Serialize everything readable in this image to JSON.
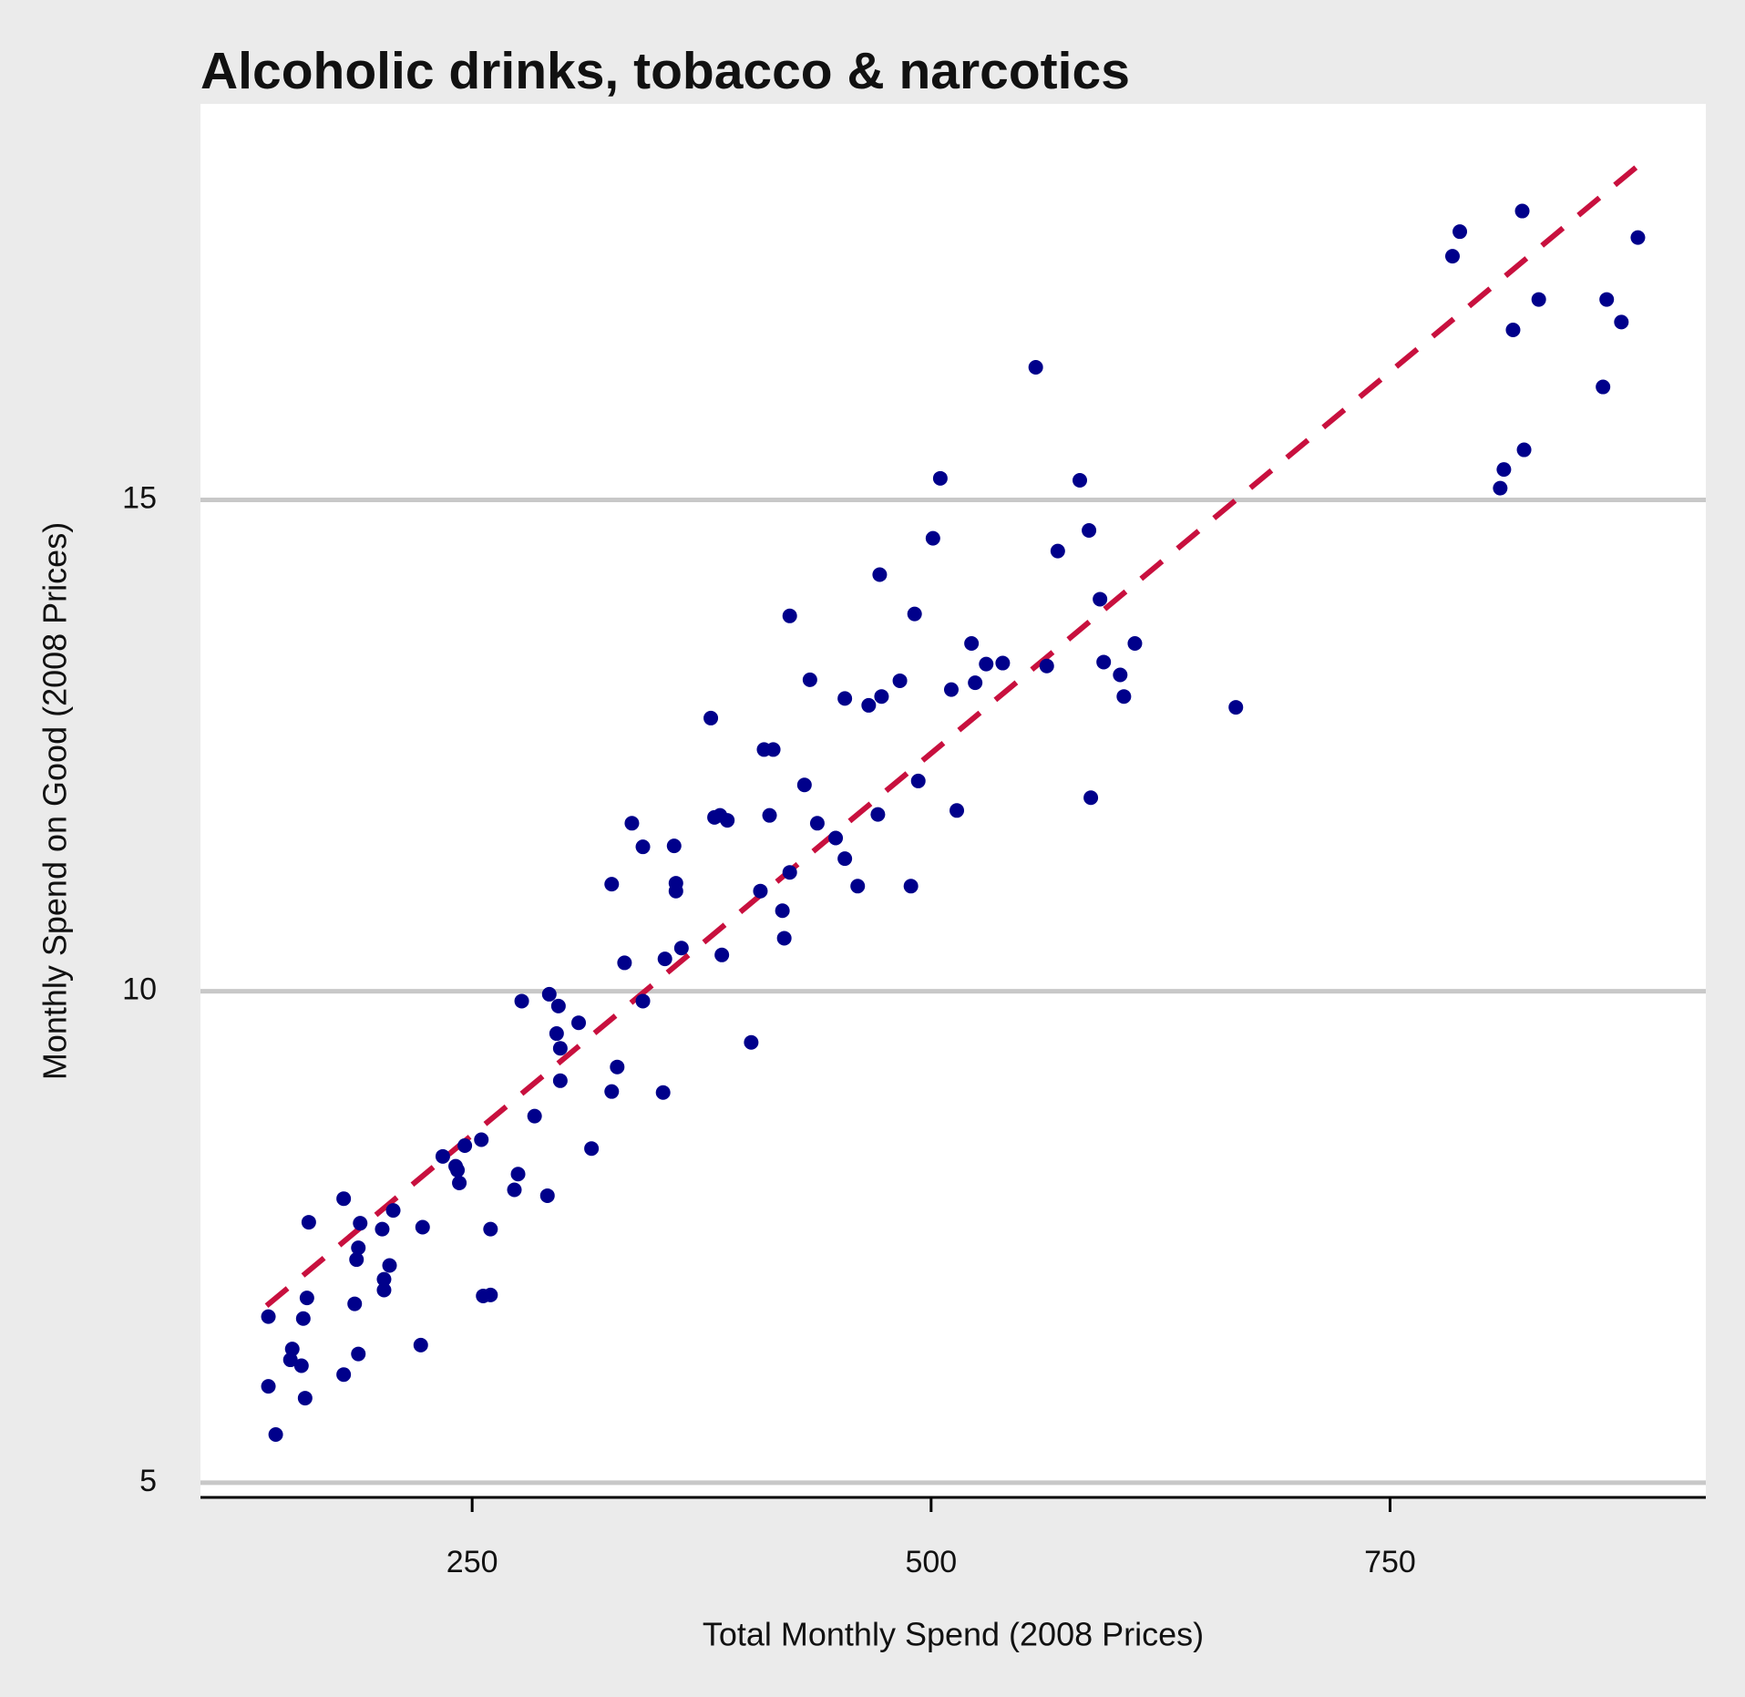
{
  "chart_data": {
    "type": "scatter",
    "title": "Alcoholic drinks, tobacco & narcotics",
    "x_label": "Total Monthly Spend (2008 Prices)",
    "y_label": "Monthly Spend on Good (2008 Prices)",
    "xlim": [
      102,
      922
    ],
    "ylim": [
      4.85,
      19.03
    ],
    "xticks": [
      250,
      500,
      750
    ],
    "yticks": [
      5,
      10,
      15
    ],
    "grid": true,
    "series": [
      {
        "color": "#00008b",
        "x": [
          139,
          139,
          143,
          152,
          151,
          157,
          158,
          159,
          160,
          161,
          180,
          180,
          186,
          187,
          188,
          188,
          189,
          201,
          202,
          202,
          205,
          207,
          222,
          223,
          234,
          241,
          242,
          243,
          246,
          255,
          256,
          260,
          260,
          273,
          275,
          277,
          284,
          291,
          292,
          297,
          296,
          298,
          298,
          308,
          315,
          326,
          326,
          329,
          333,
          337,
          343,
          343,
          354,
          355,
          360,
          361,
          361,
          364,
          380,
          382,
          385,
          389,
          386,
          402,
          407,
          409,
          414,
          412,
          419,
          420,
          423,
          423,
          431,
          434,
          438,
          448,
          453,
          453,
          460,
          466,
          472,
          471,
          473,
          483,
          489,
          491,
          493,
          501,
          505,
          511,
          514,
          522,
          524,
          530,
          539,
          557,
          563,
          569,
          581,
          586,
          587,
          592,
          594,
          603,
          605,
          611,
          666,
          784,
          788,
          810,
          812,
          817,
          822,
          823,
          831,
          866,
          868,
          876,
          885
        ],
        "values": [
          6.69,
          5.98,
          5.49,
          6.36,
          6.25,
          6.19,
          6.67,
          5.86,
          6.88,
          7.65,
          7.89,
          6.1,
          6.82,
          7.27,
          7.39,
          6.31,
          7.64,
          7.58,
          6.96,
          7.07,
          7.21,
          7.77,
          6.4,
          7.6,
          8.32,
          8.22,
          8.18,
          8.05,
          8.43,
          8.49,
          6.9,
          6.91,
          7.58,
          7.98,
          8.14,
          9.9,
          8.73,
          7.92,
          9.97,
          9.85,
          9.57,
          9.42,
          9.09,
          9.68,
          8.4,
          11.09,
          8.98,
          9.23,
          10.29,
          11.71,
          11.47,
          9.9,
          8.97,
          10.33,
          11.48,
          11.1,
          11.02,
          10.44,
          12.78,
          11.77,
          11.79,
          11.74,
          10.37,
          9.48,
          11.02,
          12.46,
          12.46,
          11.79,
          10.82,
          10.54,
          11.21,
          13.82,
          12.1,
          13.17,
          11.71,
          11.56,
          11.35,
          12.98,
          11.07,
          12.91,
          14.24,
          11.8,
          13.0,
          13.16,
          11.07,
          13.84,
          12.14,
          14.61,
          15.22,
          13.07,
          11.84,
          13.54,
          13.14,
          13.33,
          13.34,
          16.35,
          13.31,
          14.48,
          15.2,
          14.69,
          11.97,
          13.99,
          13.35,
          13.22,
          13.0,
          13.54,
          12.89,
          17.48,
          17.73,
          15.12,
          15.31,
          16.73,
          17.94,
          15.51,
          17.04,
          16.15,
          17.04,
          16.81,
          17.67
        ]
      }
    ],
    "trendline": {
      "x": [
        138,
        885
      ],
      "y": [
        6.8,
        18.4
      ],
      "color": "#c8103e",
      "dashed": true
    }
  }
}
